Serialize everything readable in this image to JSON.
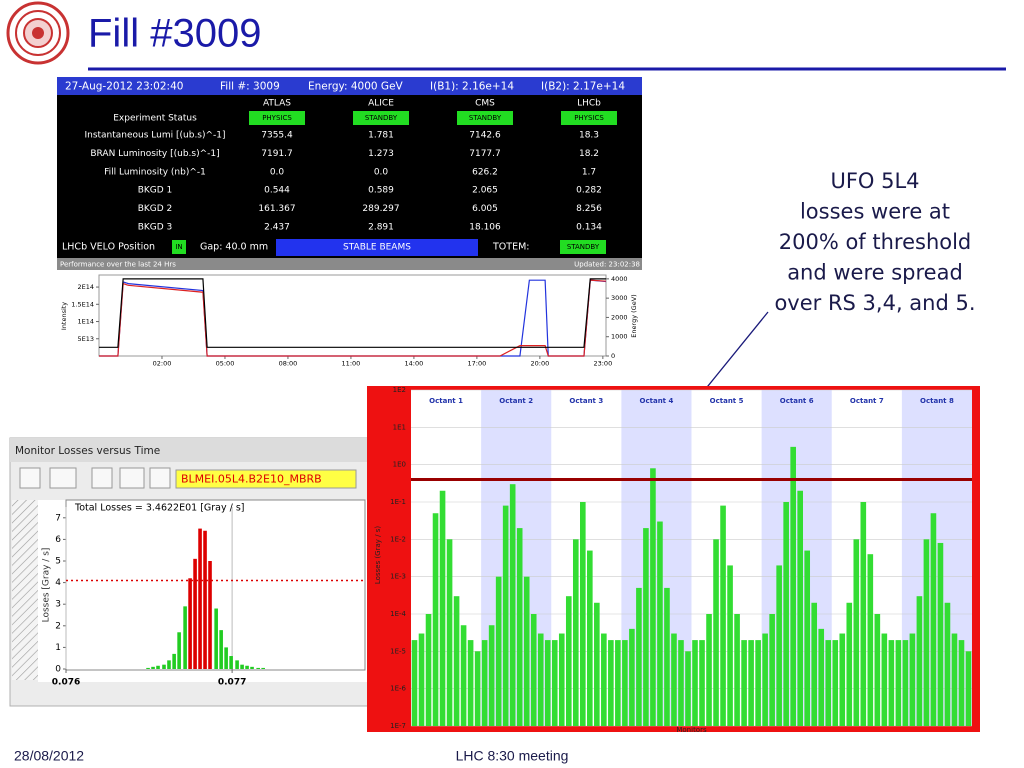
{
  "slide": {
    "title": "Fill #3009",
    "date": "28/08/2012",
    "footer": "LHC 8:30 meeting",
    "annotation": [
      "UFO 5L4",
      "losses were at",
      "200% of threshold",
      "and were spread",
      "over RS 3,4, and 5."
    ]
  },
  "page1": {
    "header": [
      "27-Aug-2012 23:02:40",
      "Fill #: 3009",
      "Energy: 4000 GeV",
      "I(B1): 2.16e+14",
      "I(B2): 2.17e+14"
    ],
    "status_label": "Experiment Status",
    "columns": [
      "ATLAS",
      "ALICE",
      "CMS",
      "LHCb"
    ],
    "status": [
      "PHYSICS",
      "STANDBY",
      "STANDBY",
      "PHYSICS"
    ],
    "rows": [
      {
        "label": "Instantaneous Lumi [(ub.s)^-1]",
        "values": [
          "7355.4",
          "1.781",
          "7142.6",
          "18.3"
        ]
      },
      {
        "label": "BRAN Luminosity [(ub.s)^-1]",
        "values": [
          "7191.7",
          "1.273",
          "7177.7",
          "18.2"
        ]
      },
      {
        "label": "Fill Luminosity (nb)^-1",
        "values": [
          "0.0",
          "0.0",
          "626.2",
          "1.7"
        ]
      },
      {
        "label": "BKGD 1",
        "values": [
          "0.544",
          "0.589",
          "2.065",
          "0.282"
        ]
      },
      {
        "label": "BKGD 2",
        "values": [
          "161.367",
          "289.297",
          "6.005",
          "8.256"
        ]
      },
      {
        "label": "BKGD 3",
        "values": [
          "2.437",
          "2.891",
          "18.106",
          "0.134"
        ]
      }
    ],
    "velo": {
      "label": "LHCb VELO Position",
      "state": "IN",
      "gap": "Gap: 40.0 mm",
      "mode": "STABLE BEAMS",
      "totem_label": "TOTEM:",
      "totem_state": "STANDBY"
    }
  },
  "blm_window": {
    "title": "Monitor Losses versus Time",
    "monitor": "BLMEI.05L4.B2E10_MBRB"
  },
  "chart_data": [
    {
      "type": "line",
      "title": "Performance over the last 24 Hrs",
      "subtitle": "Updated: 23:02:38",
      "ylabel": "Intensity",
      "y2label": "Energy (GeV)",
      "x": [
        -1,
        -0.1,
        0.15,
        0.4,
        3.95,
        4.15,
        18.1,
        19.05,
        19.5,
        20.25,
        20.4,
        22.1,
        22.4,
        23.15
      ],
      "xlim": [
        -1,
        23.15
      ],
      "xticks": [
        {
          "value": 2,
          "label": "02:00"
        },
        {
          "value": 5,
          "label": "05:00"
        },
        {
          "value": 8,
          "label": "08:00"
        },
        {
          "value": 11,
          "label": "11:00"
        },
        {
          "value": 14,
          "label": "14:00"
        },
        {
          "value": 17,
          "label": "17:00"
        },
        {
          "value": 20,
          "label": "20:00"
        },
        {
          "value": 23,
          "label": "23:00"
        }
      ],
      "ylim": [
        0,
        235000000000000.0
      ],
      "yticks": [
        {
          "value": 50000000000000.0,
          "label": "5E13"
        },
        {
          "value": 100000000000000.0,
          "label": "1E14"
        },
        {
          "value": 150000000000000.0,
          "label": "1.5E14"
        },
        {
          "value": 200000000000000.0,
          "label": "2E14"
        }
      ],
      "y2lim": [
        0,
        4200
      ],
      "y2ticks": [
        0,
        1000,
        2000,
        3000,
        4000
      ],
      "series": [
        {
          "color": "#2233dd",
          "values": [
            0,
            0,
            215000000000000.0,
            210000000000000.0,
            190000000000000.0,
            0,
            0,
            0,
            220000000000000.0,
            220000000000000.0,
            0,
            0,
            220000000000000.0,
            216000000000000.0
          ]
        },
        {
          "color": "#dd2222",
          "values": [
            0,
            0,
            210000000000000.0,
            205000000000000.0,
            185000000000000.0,
            0,
            0,
            30000000000000.0,
            30000000000000.0,
            30000000000000.0,
            0,
            0,
            220000000000000.0,
            217000000000000.0
          ]
        },
        {
          "color": "#000000",
          "axis": "y2",
          "values": [
            450,
            450,
            4000,
            4000,
            4000,
            450,
            450,
            450,
            450,
            450,
            450,
            450,
            4000,
            4000
          ]
        }
      ]
    },
    {
      "type": "bar",
      "title": "Total Losses = 3.4622E01 [Gray / s]",
      "ylabel": "Losses [Gray / s]",
      "x": [
        0.076494,
        0.076524,
        0.076554,
        0.07659,
        0.07662,
        0.076651,
        0.076681,
        0.076717,
        0.076747,
        0.076777,
        0.076807,
        0.076837,
        0.076867,
        0.076904,
        0.076934,
        0.076964,
        0.076994,
        0.07703,
        0.07706,
        0.07709,
        0.07712,
        0.077157,
        0.077187
      ],
      "values": [
        0.05,
        0.1,
        0.15,
        0.2,
        0.4,
        0.7,
        1.7,
        2.9,
        4.2,
        5.1,
        6.5,
        6.4,
        5.0,
        2.8,
        1.8,
        1.0,
        0.6,
        0.4,
        0.2,
        0.15,
        0.1,
        0.05,
        0.05
      ],
      "color": "#22cc22",
      "threshold": 4.1,
      "threshold_color": "#dd0000",
      "xlim": [
        0.076,
        0.0778
      ],
      "xticks": [
        0.076,
        0.077
      ],
      "ylim": [
        0,
        7.5
      ],
      "yticks": [
        0,
        1,
        2,
        3,
        4,
        5,
        6,
        7
      ]
    },
    {
      "type": "bar",
      "log": true,
      "grid": true,
      "ylabel": "Losses (Gray / s)",
      "xlabel": "Monitors",
      "groups": [
        "Octant 1",
        "Octant 2",
        "Octant 3",
        "Octant 4",
        "Octant 5",
        "Octant 6",
        "Octant 7",
        "Octant 8"
      ],
      "values": [
        2e-05,
        3e-05,
        0.0001,
        0.05,
        0.2,
        0.01,
        0.0003,
        5e-05,
        2e-05,
        1e-05,
        2e-05,
        5e-05,
        0.001,
        0.08,
        0.3,
        0.02,
        0.001,
        0.0001,
        3e-05,
        2e-05,
        2e-05,
        3e-05,
        0.0003,
        0.01,
        0.1,
        0.005,
        0.0002,
        3e-05,
        2e-05,
        2e-05,
        2e-05,
        4e-05,
        0.0005,
        0.02,
        0.8,
        0.03,
        0.0005,
        3e-05,
        2e-05,
        1e-05,
        2e-05,
        2e-05,
        0.0001,
        0.01,
        0.08,
        0.002,
        0.0001,
        2e-05,
        2e-05,
        2e-05,
        3e-05,
        0.0001,
        0.002,
        0.1,
        3,
        0.2,
        0.005,
        0.0002,
        4e-05,
        2e-05,
        2e-05,
        3e-05,
        0.0002,
        0.01,
        0.1,
        0.004,
        0.0001,
        3e-05,
        2e-05,
        2e-05,
        2e-05,
        3e-05,
        0.0003,
        0.01,
        0.05,
        0.008,
        0.0002,
        3e-05,
        2e-05,
        1e-05
      ],
      "color": "#33dd33",
      "threshold": 0.4,
      "threshold_color": "#990000",
      "ylim": [
        1e-07,
        100
      ],
      "yticks": [
        {
          "value": 1e-07,
          "label": "1E-7"
        },
        {
          "value": 1e-06,
          "label": "1E-6"
        },
        {
          "value": 1e-05,
          "label": "1E-5"
        },
        {
          "value": 0.0001,
          "label": "1E-4"
        },
        {
          "value": 0.001,
          "label": "1E-3"
        },
        {
          "value": 0.01,
          "label": "1E-2"
        },
        {
          "value": 0.1,
          "label": "1E-1"
        },
        {
          "value": 1,
          "label": "1E0"
        },
        {
          "value": 10,
          "label": "1E1"
        },
        {
          "value": 100,
          "label": "1E2"
        }
      ]
    }
  ]
}
